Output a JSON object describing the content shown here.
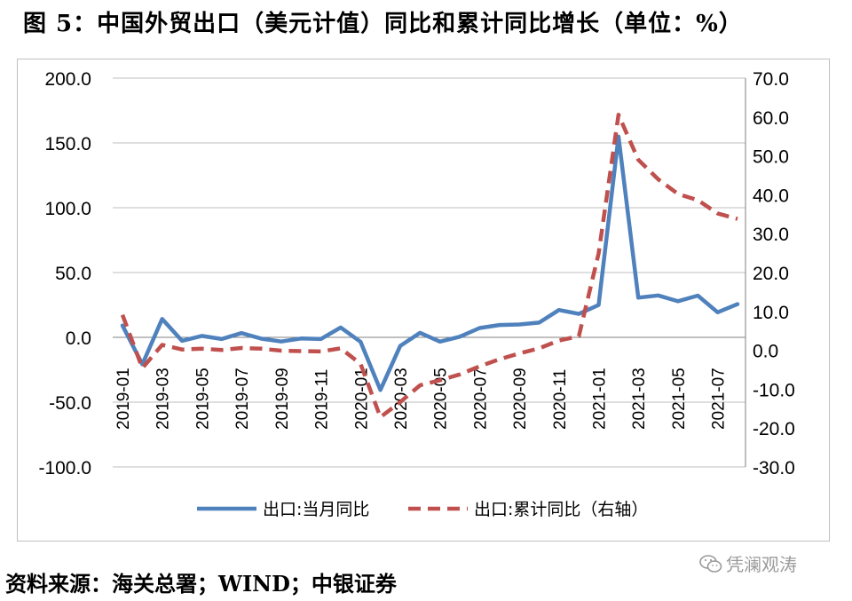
{
  "title": "图 5：中国外贸出口（美元计值）同比和累计同比增长（单位：%）",
  "source": "资料来源：海关总署；WIND；中银证券",
  "watermark": "凭澜观涛",
  "colors": {
    "series_left": "#4f81bd",
    "series_right": "#c0504d",
    "grid": "#bfbfbf",
    "axis": "#808080"
  },
  "chart_data": {
    "type": "line",
    "title": "",
    "x_tick_labels": [
      "2019-01",
      "2019-03",
      "2019-05",
      "2019-07",
      "2019-09",
      "2019-11",
      "2020-01",
      "2020-03",
      "2020-05",
      "2020-07",
      "2020-09",
      "2020-11",
      "2021-01",
      "2021-03",
      "2021-05",
      "2021-07"
    ],
    "categories": [
      "2019-01",
      "2019-02",
      "2019-03",
      "2019-04",
      "2019-05",
      "2019-06",
      "2019-07",
      "2019-08",
      "2019-09",
      "2019-10",
      "2019-11",
      "2019-12",
      "2020-01",
      "2020-02",
      "2020-03",
      "2020-04",
      "2020-05",
      "2020-06",
      "2020-07",
      "2020-08",
      "2020-09",
      "2020-10",
      "2020-11",
      "2020-12",
      "2021-01",
      "2021-02",
      "2021-03",
      "2021-04",
      "2021-05",
      "2021-06",
      "2021-07",
      "2021-08"
    ],
    "y_left": {
      "ylim": [
        -100,
        200
      ],
      "ticks": [
        "200.0",
        "150.0",
        "100.0",
        "50.0",
        "0.0",
        "-50.0",
        "-100.0"
      ]
    },
    "y_right": {
      "ylim": [
        -30,
        70
      ],
      "ticks": [
        "70.0",
        "60.0",
        "50.0",
        "40.0",
        "30.0",
        "20.0",
        "10.0",
        "0.0",
        "-10.0",
        "-20.0",
        "-30.0"
      ]
    },
    "grid": true,
    "legend_position": "bottom",
    "series": [
      {
        "name": "出口:当月同比",
        "axis": "left",
        "style": "solid",
        "values": [
          9.1,
          -20.8,
          14.2,
          -2.7,
          1.1,
          -1.3,
          3.3,
          -1.0,
          -3.2,
          -0.9,
          -1.3,
          7.6,
          -3.5,
          -40.6,
          -6.6,
          3.5,
          -3.3,
          0.5,
          7.2,
          9.5,
          9.9,
          11.4,
          21.1,
          18.1,
          24.9,
          154.9,
          30.6,
          32.3,
          27.9,
          32.2,
          19.3,
          25.6
        ]
      },
      {
        "name": "出口:累计同比（右轴）",
        "axis": "right",
        "style": "dashed",
        "values": [
          9.1,
          -4.6,
          1.4,
          0.2,
          0.4,
          0.1,
          0.6,
          0.4,
          -0.1,
          -0.2,
          -0.3,
          0.5,
          -3.5,
          -17.2,
          -13.3,
          -9.0,
          -7.7,
          -6.2,
          -4.1,
          -2.3,
          -0.8,
          0.5,
          2.5,
          3.6,
          24.9,
          60.6,
          49.0,
          44.0,
          40.2,
          38.6,
          35.2,
          33.8
        ]
      }
    ]
  }
}
